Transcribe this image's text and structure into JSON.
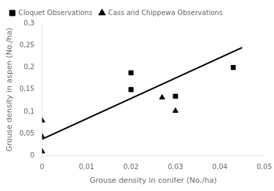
{
  "chart_data": {
    "type": "scatter",
    "xlabel": "Grouse density in conifer (No./ha)",
    "ylabel": "Grouse density in aspen (No./ha)",
    "xlim": [
      0,
      0.05
    ],
    "ylim": [
      0,
      0.3
    ],
    "xticks": [
      0,
      {
        "value": 0.01,
        "label": "0,01"
      },
      {
        "value": 0.02,
        "label": "0,02"
      },
      {
        "value": 0.03,
        "label": "0,03"
      },
      {
        "value": 0.04,
        "label": "0,04"
      },
      {
        "value": 0.05,
        "label": "0,05"
      }
    ],
    "yticks": [
      0,
      {
        "value": 0.05,
        "label": "0,05"
      },
      {
        "value": 0.1,
        "label": "0,1"
      },
      {
        "value": 0.15,
        "label": "0,15"
      },
      {
        "value": 0.2,
        "label": "0,2"
      },
      {
        "value": 0.25,
        "label": "0,25"
      },
      {
        "value": 0.3,
        "label": "0,3"
      }
    ],
    "grid": false,
    "legend": "upper left",
    "series": [
      {
        "type": "line",
        "color": "black",
        "x": [
          0.0,
          0.045
        ],
        "values": [
          0.038,
          0.245
        ]
      },
      {
        "name": "Cloquet Observations",
        "type": "scatter",
        "marker": "square",
        "color": "black",
        "x": [
          0.02,
          0.02,
          0.03,
          0.043
        ],
        "values": [
          0.188,
          0.15,
          0.135,
          0.2
        ]
      },
      {
        "name": "Cass and Chippewa Observations",
        "type": "scatter",
        "marker": "triangle",
        "color": "black",
        "x": [
          0.0,
          0.0,
          0.0,
          0.027,
          0.03
        ],
        "values": [
          0.08,
          0.044,
          0.01,
          0.132,
          0.102
        ]
      }
    ]
  }
}
